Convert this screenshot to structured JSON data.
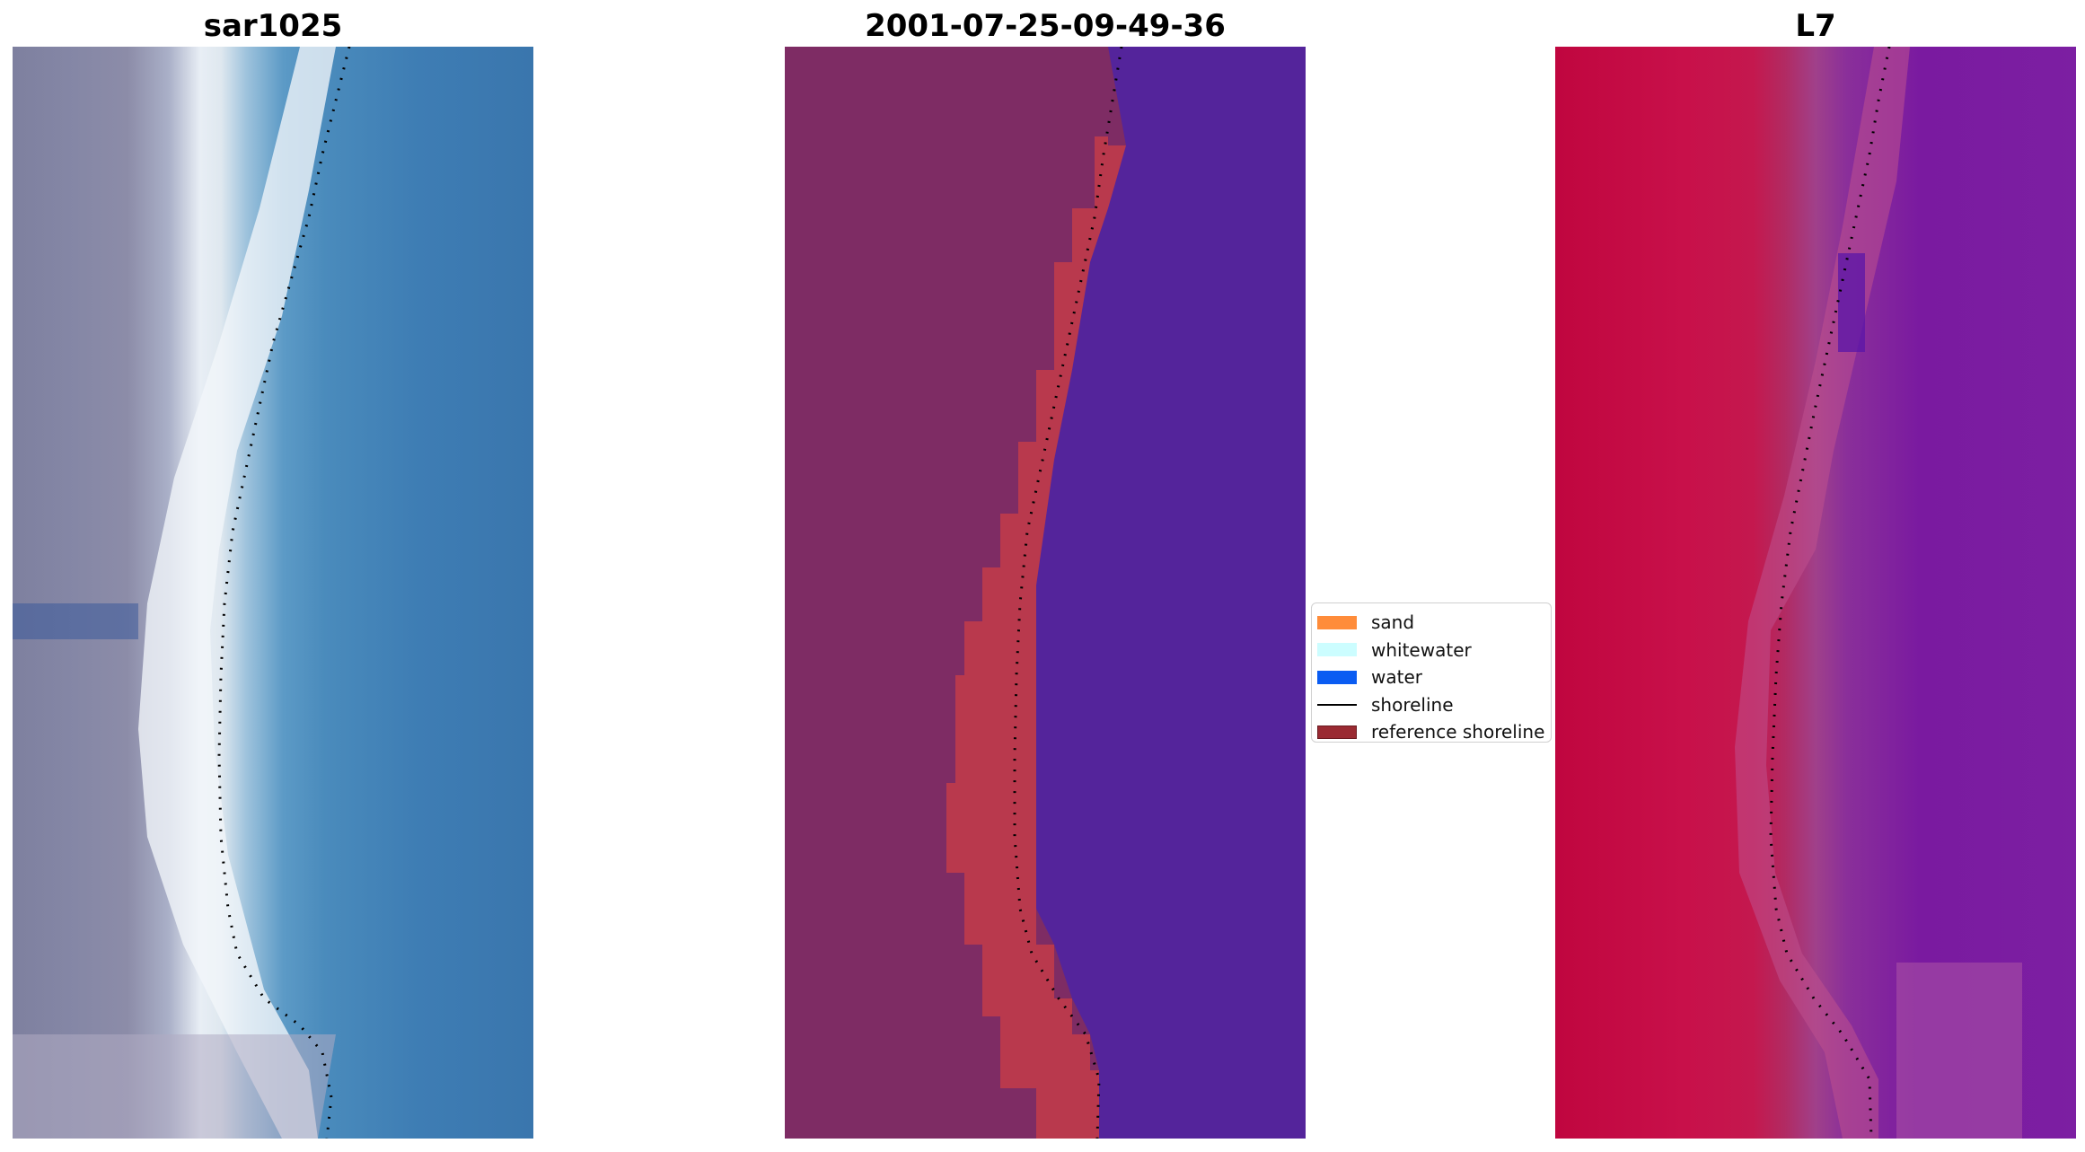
{
  "panels": [
    {
      "title": "sar1025"
    },
    {
      "title": "2001-07-25-09-49-36"
    },
    {
      "title": "L7"
    }
  ],
  "legend": {
    "items": [
      {
        "label": "sand",
        "swatch_color": "#ff8c3a",
        "kind": "patch"
      },
      {
        "label": "whitewater",
        "swatch_color": "#ccfdff",
        "kind": "patch"
      },
      {
        "label": "water",
        "swatch_color": "#0a5cf2",
        "kind": "patch"
      },
      {
        "label": "shoreline",
        "swatch_color": "#000000",
        "kind": "line"
      },
      {
        "label": "reference shoreline",
        "swatch_color": "#9a2a32",
        "kind": "patch"
      }
    ]
  },
  "colors": {
    "shoreline_dots": "#000000",
    "reference_band": "#b9394d",
    "water_class": "#54249b"
  }
}
